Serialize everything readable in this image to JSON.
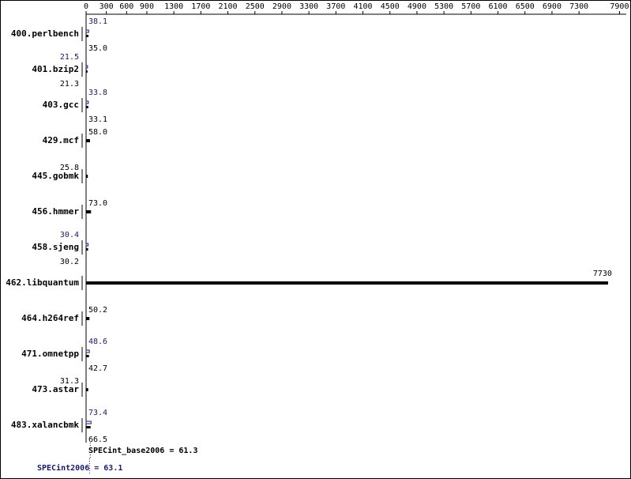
{
  "chart_data": {
    "type": "bar",
    "orientation": "horizontal",
    "categories": [
      "400.perlbench",
      "401.bzip2",
      "403.gcc",
      "429.mcf",
      "445.gobmk",
      "456.hmmer",
      "458.sjeng",
      "462.libquantum",
      "464.h264ref",
      "471.omnetpp",
      "473.astar",
      "483.xalancbmk"
    ],
    "values": [
      35.0,
      21.3,
      33.1,
      58.0,
      25.8,
      73.0,
      30.2,
      7730,
      50.2,
      42.7,
      31.3,
      66.5
    ],
    "value_labels": [
      "35.0",
      "21.3",
      "33.1",
      "58.0",
      "25.8",
      "73.0",
      "30.2",
      "7730",
      "50.2",
      "42.7",
      "31.3",
      "66.5"
    ],
    "peak_values": [
      38.1,
      21.5,
      33.8,
      null,
      null,
      null,
      30.4,
      null,
      null,
      48.6,
      null,
      73.4
    ],
    "peak_value_labels": [
      "38.1",
      "21.5",
      "33.8",
      null,
      null,
      null,
      "30.4",
      null,
      null,
      "48.6",
      null,
      "73.4"
    ],
    "color": "#000000",
    "peak_color": "#191970",
    "xlim": [
      0,
      8000
    ],
    "xticks": [
      0,
      300,
      600,
      900,
      1300,
      1700,
      2100,
      2500,
      2900,
      3300,
      3700,
      4100,
      4500,
      4900,
      5300,
      5700,
      6100,
      6500,
      6900,
      7300,
      7900
    ],
    "summary_base": {
      "value": 61.3,
      "label": "SPECint_base2006 = 61.3"
    },
    "summary_peak": {
      "value": 63.1,
      "label": "SPECint2006 = 63.1"
    }
  }
}
